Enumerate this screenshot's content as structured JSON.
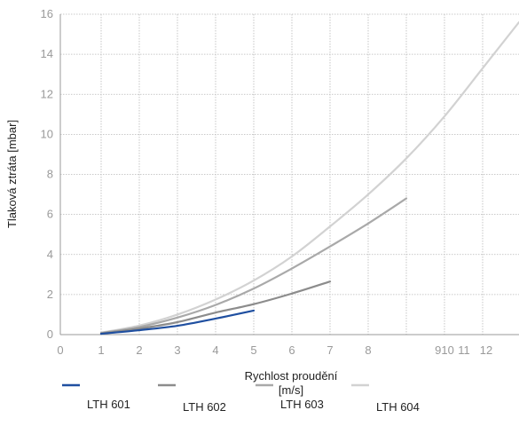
{
  "chart_data": {
    "type": "line",
    "title": "",
    "xlabel_line1": "Rychlost proudění",
    "xlabel_line2": "[m/s]",
    "ylabel": "Tlaková ztráta [mbar]",
    "x_ticks": [
      "0",
      "1",
      "2",
      "3",
      "4",
      "5",
      "6",
      "7",
      "8",
      "910",
      "11",
      "12"
    ],
    "y_ticks": [
      "0",
      "2",
      "4",
      "6",
      "8",
      "10",
      "12",
      "14",
      "16"
    ],
    "ylim": [
      0,
      16
    ],
    "grid": true,
    "legend_position": "bottom",
    "series": [
      {
        "name": "LTH 601",
        "color": "#1f4fa0",
        "points": [
          [
            1,
            0.04
          ],
          [
            2,
            0.22
          ],
          [
            3,
            0.44
          ],
          [
            4,
            0.8
          ],
          [
            5,
            1.2
          ]
        ]
      },
      {
        "name": "LTH 602",
        "color": "#8c8c8c",
        "points": [
          [
            1,
            0.06
          ],
          [
            2,
            0.3
          ],
          [
            3,
            0.62
          ],
          [
            4,
            1.1
          ],
          [
            5,
            1.52
          ],
          [
            6,
            2.05
          ],
          [
            7,
            2.65
          ]
        ]
      },
      {
        "name": "LTH 603",
        "color": "#a9a9a9",
        "points": [
          [
            1,
            0.08
          ],
          [
            2,
            0.38
          ],
          [
            3,
            0.85
          ],
          [
            4,
            1.48
          ],
          [
            5,
            2.3
          ],
          [
            6,
            3.3
          ],
          [
            7,
            4.4
          ],
          [
            8,
            5.55
          ],
          [
            9,
            6.8
          ]
        ]
      },
      {
        "name": "LTH 604",
        "color": "#d2d2d2",
        "points": [
          [
            1,
            0.1
          ],
          [
            2,
            0.45
          ],
          [
            3,
            1.0
          ],
          [
            4,
            1.75
          ],
          [
            5,
            2.7
          ],
          [
            6,
            3.9
          ],
          [
            7,
            5.4
          ],
          [
            8,
            7.0
          ],
          [
            9,
            8.8
          ],
          [
            10,
            10.9
          ],
          [
            11,
            13.3
          ],
          [
            12,
            15.6
          ]
        ]
      }
    ]
  }
}
